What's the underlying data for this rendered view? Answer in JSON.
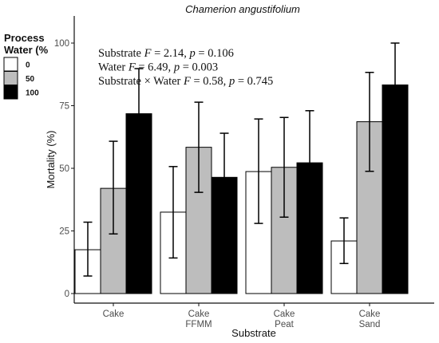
{
  "chart_data": {
    "type": "bar",
    "title": "Chamerion angustifolium",
    "xlabel": "Substrate",
    "ylabel": "Mortality (%)",
    "ylim": [
      0,
      110
    ],
    "yticks": [
      0,
      25,
      50,
      75,
      100
    ],
    "categories": [
      [
        "Cake"
      ],
      [
        "Cake",
        "FFMM"
      ],
      [
        "Cake",
        "Peat"
      ],
      [
        "Cake",
        "Sand"
      ]
    ],
    "legend": {
      "title": "Process Water (%",
      "placement": "left"
    },
    "series": [
      {
        "name": "0",
        "color": "#ffffff",
        "values": [
          17.5,
          32.5,
          48.7,
          21.0
        ],
        "error_low": [
          7.0,
          14.2,
          28.0,
          12.0
        ],
        "error_high": [
          28.5,
          50.7,
          69.7,
          30.2
        ]
      },
      {
        "name": "50",
        "color": "#bdbdbd",
        "values": [
          42.0,
          58.4,
          50.4,
          68.6
        ],
        "error_low": [
          23.8,
          40.4,
          30.5,
          48.8
        ],
        "error_high": [
          60.8,
          76.4,
          70.3,
          88.3
        ]
      },
      {
        "name": "100",
        "color": "#000000",
        "values": [
          71.8,
          46.4,
          52.2,
          83.3
        ],
        "error_low": [
          54.0,
          28.5,
          31.5,
          66.5
        ],
        "error_high": [
          89.8,
          64.0,
          73.0,
          100.0
        ]
      }
    ],
    "annotations": [
      "Substrate F = 2.14, p = 0.106",
      "Water F = 6.49, p = 0.003",
      "Substrate × Water F = 0.58, p = 0.745"
    ]
  }
}
